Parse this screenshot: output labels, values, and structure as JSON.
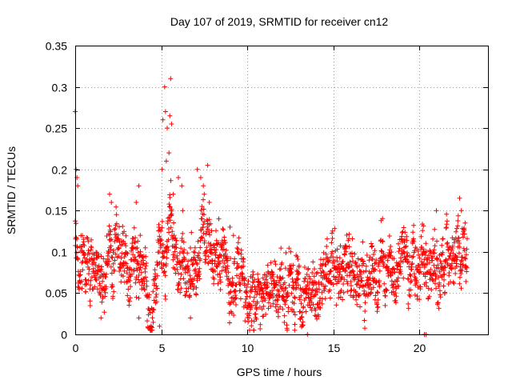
{
  "chart_data": {
    "type": "scatter",
    "title": "Day 107 of 2019, SRMTID for receiver cn12",
    "xlabel": "GPS time / hours",
    "ylabel": "SRMTID / TECUs",
    "xlim": [
      0,
      24
    ],
    "ylim": [
      0,
      0.35
    ],
    "x_ticks": [
      0,
      5,
      10,
      15,
      20
    ],
    "y_ticks": [
      0,
      0.05,
      0.1,
      0.15,
      0.2,
      0.25,
      0.3,
      0.35
    ],
    "x_tick_labels": [
      "0",
      "5",
      "10",
      "15",
      "20"
    ],
    "y_tick_labels": [
      "0",
      "0.05",
      "0.1",
      "0.15",
      "0.2",
      "0.25",
      "0.3",
      "0.35"
    ],
    "grid": true,
    "marker": "+",
    "series_color": "#ff0000",
    "trend": [
      [
        0.0,
        0.12
      ],
      [
        0.2,
        0.11
      ],
      [
        0.5,
        0.08
      ],
      [
        1.0,
        0.075
      ],
      [
        1.5,
        0.06
      ],
      [
        2.0,
        0.09
      ],
      [
        2.5,
        0.095
      ],
      [
        3.0,
        0.09
      ],
      [
        3.5,
        0.075
      ],
      [
        4.0,
        0.06
      ],
      [
        4.5,
        0.045
      ],
      [
        5.0,
        0.1
      ],
      [
        5.5,
        0.13
      ],
      [
        6.0,
        0.09
      ],
      [
        6.5,
        0.07
      ],
      [
        7.0,
        0.09
      ],
      [
        7.5,
        0.12
      ],
      [
        8.0,
        0.1
      ],
      [
        8.5,
        0.07
      ],
      [
        9.0,
        0.065
      ],
      [
        9.5,
        0.06
      ],
      [
        10.0,
        0.04
      ],
      [
        10.5,
        0.045
      ],
      [
        11.0,
        0.055
      ],
      [
        11.5,
        0.055
      ],
      [
        12.0,
        0.06
      ],
      [
        12.5,
        0.055
      ],
      [
        13.0,
        0.06
      ],
      [
        13.5,
        0.05
      ],
      [
        14.0,
        0.06
      ],
      [
        14.5,
        0.065
      ],
      [
        15.0,
        0.07
      ],
      [
        15.5,
        0.075
      ],
      [
        16.0,
        0.07
      ],
      [
        16.5,
        0.065
      ],
      [
        17.0,
        0.065
      ],
      [
        17.5,
        0.06
      ],
      [
        18.0,
        0.065
      ],
      [
        18.5,
        0.075
      ],
      [
        19.0,
        0.08
      ],
      [
        19.5,
        0.08
      ],
      [
        20.0,
        0.085
      ],
      [
        20.5,
        0.09
      ],
      [
        21.0,
        0.095
      ],
      [
        21.5,
        0.09
      ],
      [
        22.0,
        0.09
      ],
      [
        22.5,
        0.1
      ],
      [
        22.8,
        0.105
      ]
    ],
    "spread": 0.025,
    "sample_spacing_hours": 0.012,
    "data_range_hours": [
      0.0,
      22.8
    ],
    "highlights": [
      {
        "x": 0.0,
        "y": 0.27
      },
      {
        "x": 0.05,
        "y": 0.2
      },
      {
        "x": 0.1,
        "y": 0.19
      },
      {
        "x": 0.15,
        "y": 0.18
      },
      {
        "x": 2.0,
        "y": 0.17
      },
      {
        "x": 2.1,
        "y": 0.16
      },
      {
        "x": 3.55,
        "y": 0.16
      },
      {
        "x": 3.7,
        "y": 0.18
      },
      {
        "x": 5.1,
        "y": 0.26
      },
      {
        "x": 5.2,
        "y": 0.3
      },
      {
        "x": 5.25,
        "y": 0.27
      },
      {
        "x": 5.35,
        "y": 0.25
      },
      {
        "x": 5.5,
        "y": 0.265
      },
      {
        "x": 5.55,
        "y": 0.31
      },
      {
        "x": 5.45,
        "y": 0.22
      },
      {
        "x": 5.3,
        "y": 0.21
      },
      {
        "x": 5.6,
        "y": 0.255
      },
      {
        "x": 5.05,
        "y": 0.2
      },
      {
        "x": 5.7,
        "y": 0.17
      },
      {
        "x": 6.0,
        "y": 0.19
      },
      {
        "x": 6.2,
        "y": 0.18
      },
      {
        "x": 6.25,
        "y": 0.15
      },
      {
        "x": 7.1,
        "y": 0.2
      },
      {
        "x": 7.3,
        "y": 0.19
      },
      {
        "x": 7.45,
        "y": 0.18
      },
      {
        "x": 7.7,
        "y": 0.205
      },
      {
        "x": 7.8,
        "y": 0.16
      },
      {
        "x": 7.5,
        "y": 0.17
      },
      {
        "x": 8.35,
        "y": 0.14
      },
      {
        "x": 9.0,
        "y": 0.13
      },
      {
        "x": 9.2,
        "y": 0.12
      },
      {
        "x": 22.35,
        "y": 0.165
      },
      {
        "x": 22.45,
        "y": 0.15
      },
      {
        "x": 21.0,
        "y": 0.15
      },
      {
        "x": 4.9,
        "y": 0.01
      },
      {
        "x": 3.7,
        "y": 0.02
      },
      {
        "x": 10.1,
        "y": 0.02
      },
      {
        "x": 6.7,
        "y": 0.02
      },
      {
        "x": 1.5,
        "y": 0.02
      },
      {
        "x": 13.5,
        "y": 0.0
      },
      {
        "x": 20.3,
        "y": 0.0
      },
      {
        "x": 20.4,
        "y": 0.0
      }
    ]
  }
}
